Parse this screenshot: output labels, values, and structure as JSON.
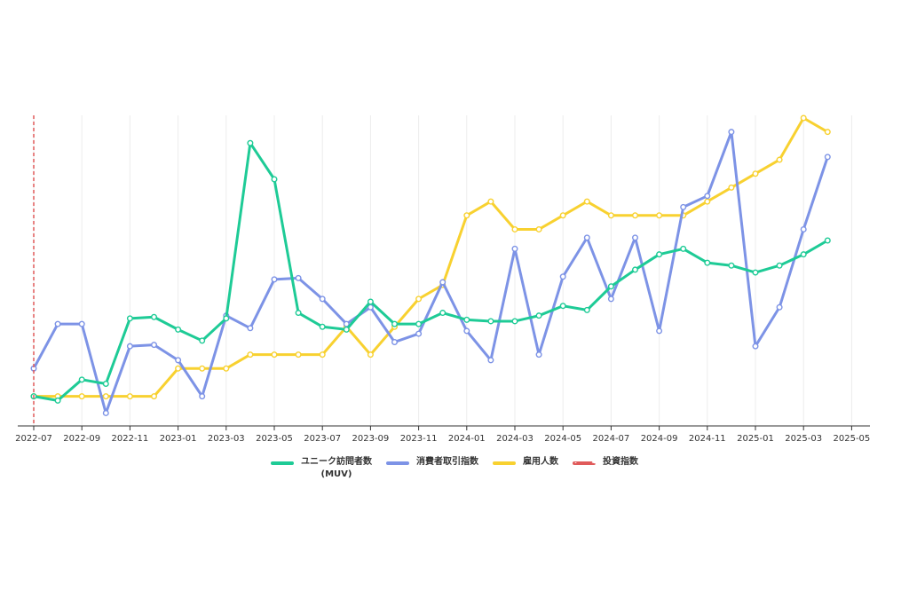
{
  "colors": {
    "muv": "#1ecb96",
    "consumer": "#7d93e6",
    "employment": "#f8d130",
    "investment": "#e05a5a",
    "axis": "#333333",
    "grid": "#ececec"
  },
  "legend": [
    {
      "label": "ユニーク訪問者数",
      "sublabel": "(MUV)",
      "color_key": "muv",
      "dashed": false
    },
    {
      "label": "消費者取引指数",
      "sublabel": "",
      "color_key": "consumer",
      "dashed": false
    },
    {
      "label": "雇用人数",
      "sublabel": "",
      "color_key": "employment",
      "dashed": false
    },
    {
      "label": "投資指数",
      "sublabel": "",
      "color_key": "investment",
      "dashed": true
    }
  ],
  "chart_data": {
    "type": "line",
    "title": "",
    "xlabel": "",
    "ylabel": "",
    "grid": "vertical",
    "legend_position": "bottom-center",
    "x": [
      "2022-07",
      "2022-08",
      "2022-09",
      "2022-10",
      "2022-11",
      "2022-12",
      "2023-01",
      "2023-02",
      "2023-03",
      "2023-04",
      "2023-05",
      "2023-06",
      "2023-07",
      "2023-08",
      "2023-09",
      "2023-10",
      "2023-11",
      "2023-12",
      "2024-01",
      "2024-02",
      "2024-03",
      "2024-04",
      "2024-05",
      "2024-06",
      "2024-07",
      "2024-08",
      "2024-09",
      "2024-10",
      "2024-11",
      "2024-12",
      "2025-01",
      "2025-02",
      "2025-03",
      "2025-04"
    ],
    "xlim": [
      "2022-07",
      "2025-05"
    ],
    "x_ticks": [
      "2022-07",
      "2022-09",
      "2022-11",
      "2023-01",
      "2023-03",
      "2023-05",
      "2023-07",
      "2023-09",
      "2023-11",
      "2024-01",
      "2024-03",
      "2024-05",
      "2024-07",
      "2024-09",
      "2024-11",
      "2025-01",
      "2025-03",
      "2025-05"
    ],
    "ylim": [
      0,
      110
    ],
    "series": [
      {
        "name": "ユニーク訪問者数 (MUV)",
        "color_key": "muv",
        "values": [
          10,
          8.5,
          16,
          14.5,
          38,
          38.5,
          34,
          30,
          38,
          101,
          88,
          40,
          35,
          34,
          44,
          36,
          36,
          40,
          37.5,
          37,
          37,
          39,
          42.5,
          41,
          49.5,
          55.5,
          61,
          63,
          58,
          57,
          54.5,
          57,
          61,
          66
        ]
      },
      {
        "name": "消費者取引指数",
        "color_key": "consumer",
        "values": [
          20,
          36,
          36,
          4,
          28,
          28.5,
          23,
          10,
          39,
          34.5,
          52,
          52.5,
          45,
          36,
          42,
          29.5,
          32.5,
          51,
          33.5,
          23,
          63,
          25,
          53,
          67,
          45,
          67,
          33.5,
          78,
          82,
          105,
          28,
          42,
          70,
          96
        ]
      },
      {
        "name": "雇用人数",
        "color_key": "employment",
        "values": [
          10,
          10,
          10,
          10,
          10,
          10,
          20,
          20,
          20,
          25,
          25,
          25,
          25,
          35,
          25,
          35,
          45,
          50,
          75,
          80,
          70,
          70,
          75,
          80,
          75,
          75,
          75,
          75,
          80,
          85,
          90,
          95,
          110,
          105
        ]
      },
      {
        "name": "投資指数",
        "color_key": "investment",
        "marker_at": "2022-07",
        "style": "dashed-vertical"
      }
    ]
  }
}
